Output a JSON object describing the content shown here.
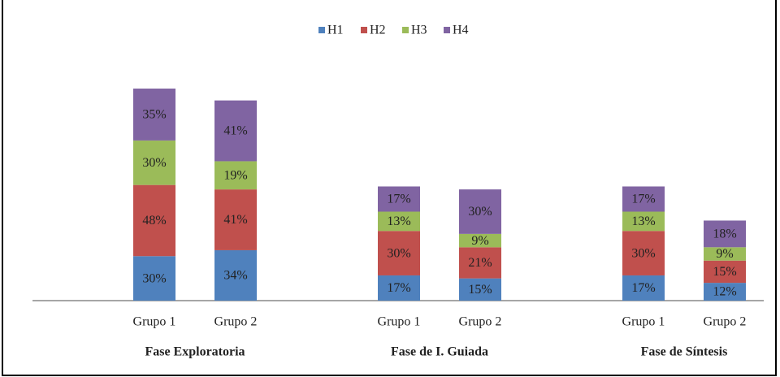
{
  "chart_data": {
    "type": "stacked_bar",
    "categories": [
      "Grupo 1",
      "Grupo 2",
      "Grupo 1",
      "Grupo 2",
      "Grupo 1",
      "Grupo 2"
    ],
    "group_labels": [
      "Fase Exploratoria",
      "Fase de I. Guiada",
      "Fase de Síntesis"
    ],
    "legend": "top",
    "series": [
      {
        "name": "H1",
        "color": "#4f81bd",
        "values": [
          30,
          34,
          17,
          15,
          17,
          12
        ],
        "value_labels": [
          "30%",
          "34%",
          "17%",
          "15%",
          "17%",
          "12%"
        ]
      },
      {
        "name": "H2",
        "color": "#c0504d",
        "values": [
          48,
          41,
          30,
          21,
          30,
          15
        ],
        "value_labels": [
          "48%",
          "41%",
          "30%",
          "21%",
          "30%",
          "15%"
        ]
      },
      {
        "name": "H3",
        "color": "#9bbb59",
        "values": [
          30,
          19,
          13,
          9,
          13,
          9
        ],
        "value_labels": [
          "30%",
          "19%",
          "13%",
          "9%",
          "13%",
          "9%"
        ]
      },
      {
        "name": "H4",
        "color": "#8064a2",
        "values": [
          35,
          41,
          17,
          30,
          17,
          18
        ],
        "value_labels": [
          "35%",
          "41%",
          "17%",
          "30%",
          "17%",
          "18%"
        ]
      }
    ]
  }
}
